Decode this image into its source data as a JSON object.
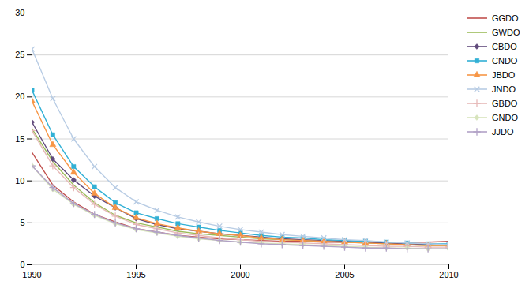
{
  "chart_data": {
    "type": "line",
    "x": [
      1990,
      1991,
      1992,
      1993,
      1994,
      1995,
      1996,
      1997,
      1998,
      1999,
      2000,
      2001,
      2002,
      2003,
      2004,
      2005,
      2006,
      2007,
      2008,
      2009,
      2010
    ],
    "series": [
      {
        "name": "GGDO",
        "color": "#c0504d",
        "line_style": "solid",
        "values": [
          13.4,
          9.5,
          7.5,
          6.0,
          5.1,
          4.3,
          3.9,
          3.5,
          3.3,
          3.1,
          3.0,
          2.9,
          2.8,
          2.8,
          2.7,
          2.7,
          2.7,
          2.7,
          2.7,
          2.7,
          2.8
        ]
      },
      {
        "name": "GWDO",
        "color": "#9bbb59",
        "line_style": "solid",
        "values": [
          16.2,
          12.3,
          9.5,
          7.4,
          5.9,
          5.0,
          4.5,
          4.0,
          3.7,
          3.5,
          3.3,
          3.1,
          3.0,
          2.9,
          2.8,
          2.7,
          2.6,
          2.5,
          2.4,
          2.3,
          2.3
        ]
      },
      {
        "name": "CBDO",
        "color": "#604a7b",
        "line_style": "solid",
        "marker": "diamond",
        "values": [
          17.0,
          12.6,
          10.1,
          8.2,
          6.8,
          5.5,
          4.8,
          4.3,
          4.0,
          3.7,
          3.5,
          3.3,
          3.1,
          3.0,
          2.9,
          2.8,
          2.7,
          2.6,
          2.5,
          2.4,
          2.4
        ]
      },
      {
        "name": "CNDO",
        "color": "#31b0d5",
        "line_style": "solid",
        "marker": "square",
        "values": [
          20.8,
          15.5,
          11.7,
          9.3,
          7.4,
          6.2,
          5.5,
          4.9,
          4.5,
          4.1,
          3.8,
          3.5,
          3.3,
          3.2,
          3.0,
          2.9,
          2.8,
          2.7,
          2.6,
          2.5,
          2.5
        ]
      },
      {
        "name": "JBDO",
        "color": "#f79646",
        "line_style": "solid",
        "marker": "triangle",
        "values": [
          19.5,
          14.3,
          11.0,
          8.5,
          6.8,
          5.6,
          4.9,
          4.4,
          4.0,
          3.7,
          3.5,
          3.2,
          3.0,
          2.9,
          2.8,
          2.7,
          2.6,
          2.5,
          2.4,
          2.3,
          2.3
        ]
      },
      {
        "name": "JNDO",
        "color": "#b8cce4",
        "line_style": "solid",
        "marker": "x",
        "values": [
          25.7,
          19.8,
          15.0,
          11.7,
          9.2,
          7.5,
          6.5,
          5.7,
          5.1,
          4.6,
          4.2,
          3.9,
          3.6,
          3.4,
          3.2,
          3.0,
          2.9,
          2.7,
          2.6,
          2.5,
          2.4
        ]
      },
      {
        "name": "GBDO",
        "color": "#e6b9b8",
        "line_style": "solid",
        "marker": "plus",
        "values": [
          16.0,
          11.8,
          9.2,
          7.2,
          5.8,
          4.8,
          4.3,
          3.8,
          3.5,
          3.2,
          3.0,
          2.8,
          2.7,
          2.6,
          2.5,
          2.4,
          2.3,
          2.2,
          2.2,
          2.1,
          2.1
        ]
      },
      {
        "name": "GNDO",
        "color": "#d7e4bc",
        "line_style": "solid",
        "marker": "diamond",
        "values": [
          11.8,
          9.0,
          7.2,
          5.9,
          4.9,
          4.2,
          3.8,
          3.4,
          3.1,
          2.9,
          2.7,
          2.6,
          2.5,
          2.4,
          2.3,
          2.2,
          2.1,
          2.0,
          2.0,
          1.9,
          1.9
        ]
      },
      {
        "name": "JJDO",
        "color": "#b2a2c7",
        "line_style": "solid",
        "marker": "plus",
        "values": [
          11.8,
          9.2,
          7.3,
          6.0,
          5.0,
          4.3,
          3.9,
          3.5,
          3.2,
          2.9,
          2.7,
          2.5,
          2.4,
          2.3,
          2.2,
          2.1,
          2.0,
          2.0,
          1.9,
          1.9,
          1.9
        ]
      }
    ],
    "xlim": [
      1990,
      2010
    ],
    "xticks": [
      1990,
      1995,
      2000,
      2005,
      2010
    ],
    "ylim": [
      0,
      30
    ],
    "yticks": [
      0,
      5,
      10,
      15,
      20,
      25,
      30
    ],
    "grid": true,
    "legend": "right"
  }
}
